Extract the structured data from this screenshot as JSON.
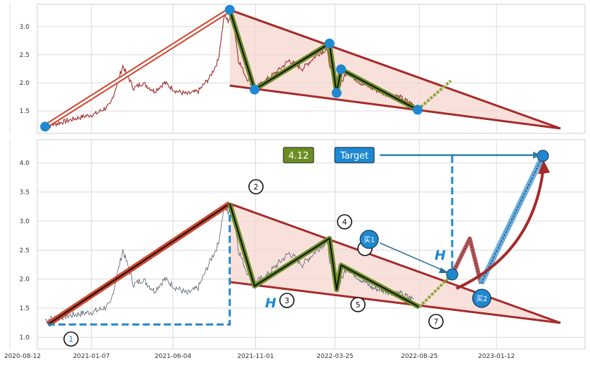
{
  "chart_data": [
    {
      "type": "line",
      "title": "",
      "xlabel": "",
      "ylabel": "",
      "ylim": [
        1.1,
        3.4
      ],
      "yticks": [
        "1.5",
        "2.0",
        "2.5",
        "3.0"
      ],
      "grid": true,
      "series": [
        {
          "color": "#9b2a2a",
          "x": [
            "2020-10-15",
            "2020-11-15",
            "2020-12-15",
            "2021-01-15",
            "2021-02-10",
            "2021-03-05",
            "2021-03-25",
            "2021-04-10",
            "2021-05-01",
            "2021-05-20",
            "2021-06-10",
            "2021-06-30",
            "2021-07-20",
            "2021-08-10",
            "2021-08-25",
            "2021-09-05",
            "2021-09-12",
            "2021-09-20",
            "2021-10-01",
            "2021-10-15",
            "2021-11-01",
            "2021-11-20",
            "2021-12-10",
            "2022-01-01",
            "2022-01-25",
            "2022-02-20",
            "2022-03-10",
            "2022-03-20",
            "2022-03-30",
            "2022-04-15",
            "2022-05-10",
            "2022-06-01",
            "2022-06-25",
            "2022-07-20",
            "2022-08-15"
          ],
          "values": [
            1.22,
            1.3,
            1.38,
            1.45,
            1.6,
            2.3,
            1.9,
            2.0,
            1.85,
            2.0,
            1.85,
            1.8,
            1.85,
            2.1,
            2.4,
            3.2,
            3.1,
            3.25,
            2.4,
            2.1,
            1.9,
            2.05,
            2.2,
            2.4,
            2.25,
            2.5,
            2.6,
            2.1,
            1.85,
            2.2,
            2.0,
            1.9,
            1.8,
            1.75,
            1.6
          ]
        }
      ],
      "pattern_points": [
        {
          "x": "2020-10-15",
          "y": 1.22
        },
        {
          "x": "2021-09-15",
          "y": 3.3
        },
        {
          "x": "2021-10-30",
          "y": 1.88
        },
        {
          "x": "2022-03-15",
          "y": 2.7
        },
        {
          "x": "2022-03-28",
          "y": 1.82
        },
        {
          "x": "2022-04-05",
          "y": 2.24
        },
        {
          "x": "2022-08-22",
          "y": 1.52
        }
      ]
    },
    {
      "type": "line",
      "title": "",
      "xlabel": "",
      "ylabel": "",
      "ylim": [
        0.8,
        4.4
      ],
      "yticks": [
        "1.0",
        "1.5",
        "2.0",
        "2.5",
        "3.0",
        "3.5",
        "4.0"
      ],
      "xticks": [
        "2020-08-12",
        "2021-01-07",
        "2021-06-04",
        "2021-11-01",
        "2022-03-25",
        "2022-08-25",
        "2023-01-12"
      ],
      "grid": true,
      "series": [
        {
          "color": "#555f6b",
          "x": [
            "2020-10-15",
            "2020-11-15",
            "2020-12-15",
            "2021-01-15",
            "2021-02-10",
            "2021-03-05",
            "2021-03-25",
            "2021-04-10",
            "2021-05-01",
            "2021-05-20",
            "2021-06-10",
            "2021-06-30",
            "2021-07-20",
            "2021-08-10",
            "2021-08-25",
            "2021-09-05",
            "2021-09-12",
            "2021-09-20",
            "2021-10-01",
            "2021-10-15",
            "2021-11-01",
            "2021-11-20",
            "2021-12-10",
            "2022-01-01",
            "2022-01-25",
            "2022-02-20",
            "2022-03-10",
            "2022-03-20",
            "2022-03-30",
            "2022-04-15",
            "2022-05-10",
            "2022-06-01",
            "2022-06-25",
            "2022-07-20",
            "2022-08-15"
          ],
          "values": [
            1.3,
            1.35,
            1.4,
            1.45,
            1.55,
            2.5,
            1.9,
            2.0,
            1.8,
            2.0,
            1.85,
            1.75,
            1.85,
            2.3,
            2.6,
            3.25,
            3.15,
            3.3,
            2.5,
            2.15,
            1.95,
            2.05,
            2.25,
            2.45,
            2.25,
            2.5,
            2.65,
            2.1,
            1.85,
            2.2,
            2.0,
            1.85,
            1.8,
            1.75,
            1.65
          ]
        }
      ],
      "pattern_points": [
        {
          "label": "1",
          "x": "2020-10-20",
          "y": 1.22
        },
        {
          "label": "2",
          "x": "2021-09-15",
          "y": 3.3
        },
        {
          "label": "3",
          "x": "2021-10-30",
          "y": 1.88
        },
        {
          "label": "4",
          "x": "2022-03-15",
          "y": 2.7
        },
        {
          "label": "5",
          "x": "2022-03-28",
          "y": 1.82
        },
        {
          "label": "",
          "x": "2022-04-05",
          "y": 2.24
        },
        {
          "label": "7",
          "x": "2022-08-25",
          "y": 1.52
        }
      ],
      "annotations": {
        "height_label": "H",
        "price_label": "4.12",
        "target_label": "Target",
        "buy1_label": "买1",
        "buy2_label": "买2"
      },
      "colors": {
        "triangle_fill": "#f6d5cf",
        "trend_line": "#a52a2a",
        "zigzag": "#6b8e23",
        "marker": "#1e88d0",
        "dashed": "#1e88d0"
      }
    }
  ]
}
